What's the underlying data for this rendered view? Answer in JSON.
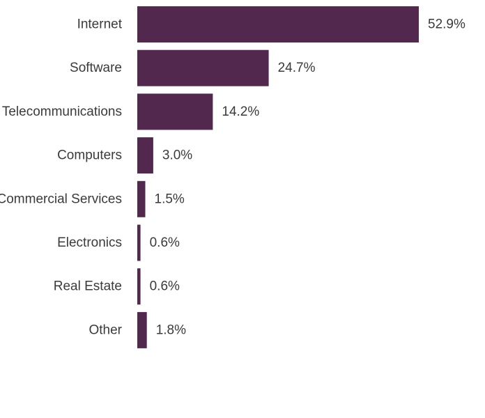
{
  "chart_data": {
    "type": "bar",
    "orientation": "horizontal",
    "categories": [
      "Internet",
      "Software",
      "Telecommunications",
      "Computers",
      "Commercial Services",
      "Electronics",
      "Real Estate",
      "Other"
    ],
    "values": [
      52.9,
      24.7,
      14.2,
      3.0,
      1.5,
      0.6,
      0.6,
      1.8
    ],
    "value_labels": [
      "52.9%",
      "24.7%",
      "14.2%",
      "3.0%",
      "1.5%",
      "0.6%",
      "0.6%",
      "1.8%"
    ],
    "xlim": [
      0,
      52.9
    ],
    "grid": false,
    "legend": "none",
    "bar_color": "#52284f",
    "text_color": "#3a3a3a"
  }
}
